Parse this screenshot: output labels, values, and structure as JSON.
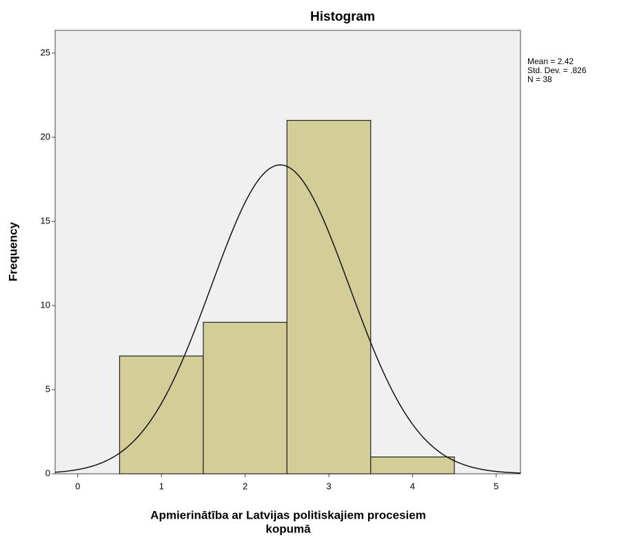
{
  "chart_data": {
    "type": "histogram",
    "title": "Histogram",
    "bins": [
      0.5,
      1.5,
      2.5,
      3.5,
      4.5
    ],
    "values": [
      7,
      9,
      21,
      1
    ],
    "color": "#d3ce97",
    "xlim": [
      -0.27,
      5.29
    ],
    "xticks": [
      0,
      1,
      2,
      3,
      4,
      5
    ],
    "ylim": [
      0,
      26.35
    ],
    "yticks": [
      0,
      5,
      10,
      15,
      20,
      25
    ],
    "xlabel": [
      "Apmierinātība ar Latvijas politiskajiem procesiem",
      "kopumā"
    ],
    "ylabel": "Frequency",
    "stats": [
      {
        "value": 2.42,
        "label": "Mean = 2.42"
      },
      {
        "value": 0.826,
        "label": "Std. Dev. = .826"
      },
      {
        "value": 38,
        "label": "N = 38"
      }
    ],
    "normal_curve": true
  }
}
